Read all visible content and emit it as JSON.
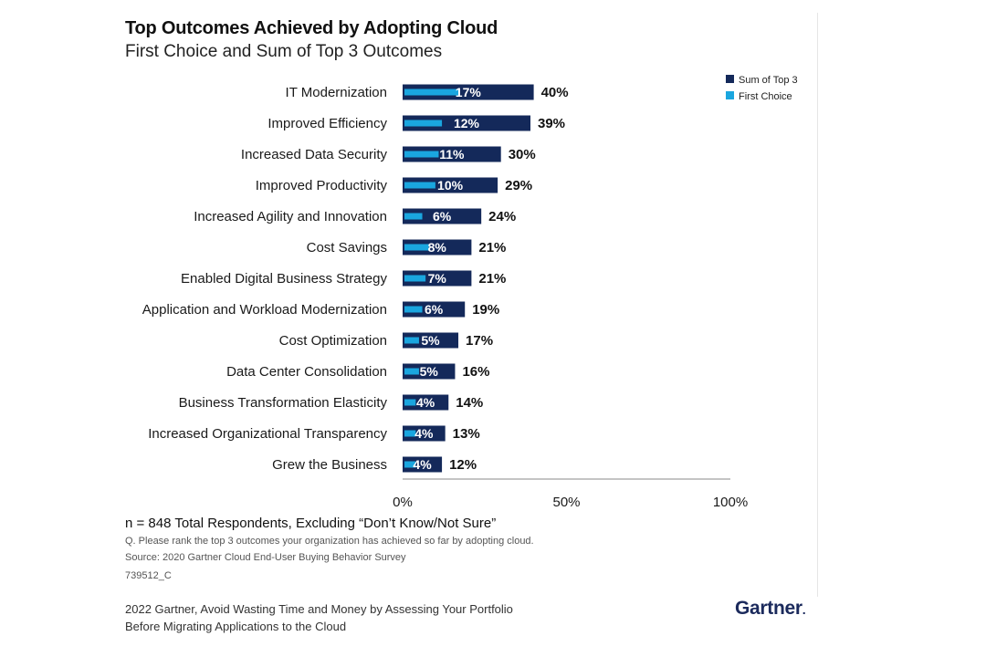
{
  "title": "Top Outcomes Achieved by Adopting Cloud",
  "subtitle": "First Choice and Sum of Top 3 Outcomes",
  "colors": {
    "sum_top3": "#14295a",
    "first_choice": "#1aa6df"
  },
  "chart_data": {
    "type": "bar",
    "orientation": "horizontal",
    "categories": [
      "IT Modernization",
      "Improved Efficiency",
      "Increased Data Security",
      "Improved Productivity",
      "Increased Agility and Innovation",
      "Cost Savings",
      "Enabled Digital Business Strategy",
      "Application and Workload Modernization",
      "Cost Optimization",
      "Data Center Consolidation",
      "Business Transformation Elasticity",
      "Increased Organizational Transparency",
      "Grew the Business"
    ],
    "series": [
      {
        "name": "Sum of Top 3",
        "values": [
          40,
          39,
          30,
          29,
          24,
          21,
          21,
          19,
          17,
          16,
          14,
          13,
          12
        ],
        "labels": [
          "40%",
          "39%",
          "30%",
          "29%",
          "24%",
          "21%",
          "21%",
          "19%",
          "17%",
          "16%",
          "14%",
          "13%",
          "12%"
        ]
      },
      {
        "name": "First Choice",
        "values": [
          17,
          12,
          11,
          10,
          6,
          8,
          7,
          6,
          5,
          5,
          4,
          4,
          4
        ],
        "labels": [
          "17%",
          "12%",
          "11%",
          "10%",
          "6%",
          "8%",
          "7%",
          "6%",
          "5%",
          "5%",
          "4%",
          "4%",
          "4%"
        ]
      }
    ],
    "xlim": [
      0,
      100
    ],
    "xticks": [
      "0%",
      "50%",
      "100%"
    ],
    "legend": [
      "Sum of Top 3",
      "First Choice"
    ],
    "legend_position": "top-right"
  },
  "notes": {
    "respondents": "n = 848 Total Respondents, Excluding “Don’t Know/Not Sure”",
    "question": "Q. Please rank the top 3 outcomes your organization has achieved so far by adopting cloud.",
    "source": "Source: 2020 Gartner Cloud End-User Buying Behavior Survey",
    "id": "739512_C"
  },
  "footer": {
    "line1": "2022 Gartner, Avoid Wasting Time and Money by Assessing Your Portfolio",
    "line2": "Before Migrating Applications to the Cloud",
    "logo": "Gartner"
  }
}
